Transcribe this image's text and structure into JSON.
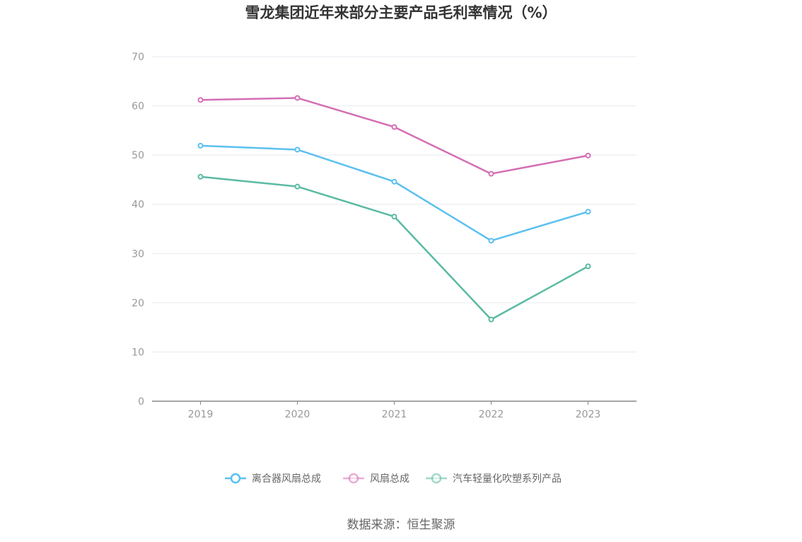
{
  "chart_data": {
    "type": "line",
    "title": "雪龙集团近年来部分主要产品毛利率情况（%）",
    "categories": [
      "2019",
      "2020",
      "2021",
      "2022",
      "2023"
    ],
    "ylim": [
      0,
      70
    ],
    "yticks": [
      "0",
      "10",
      "20",
      "30",
      "40",
      "50",
      "60",
      "70"
    ],
    "grid": true,
    "legend_position": "bottom",
    "series": [
      {
        "name": "离合器风扇总成",
        "color": "#5bc0f0",
        "values": [
          51.9,
          51.1,
          44.6,
          32.6,
          38.5
        ]
      },
      {
        "name": "风扇总成",
        "color": "#d46eb4",
        "values": [
          61.2,
          61.6,
          55.7,
          46.2,
          49.9
        ]
      },
      {
        "name": "汽车轻量化吹塑系列产品",
        "color": "#5abaa3",
        "values": [
          45.6,
          43.6,
          37.5,
          16.6,
          27.4
        ]
      }
    ]
  },
  "source": "数据来源：恒生聚源"
}
